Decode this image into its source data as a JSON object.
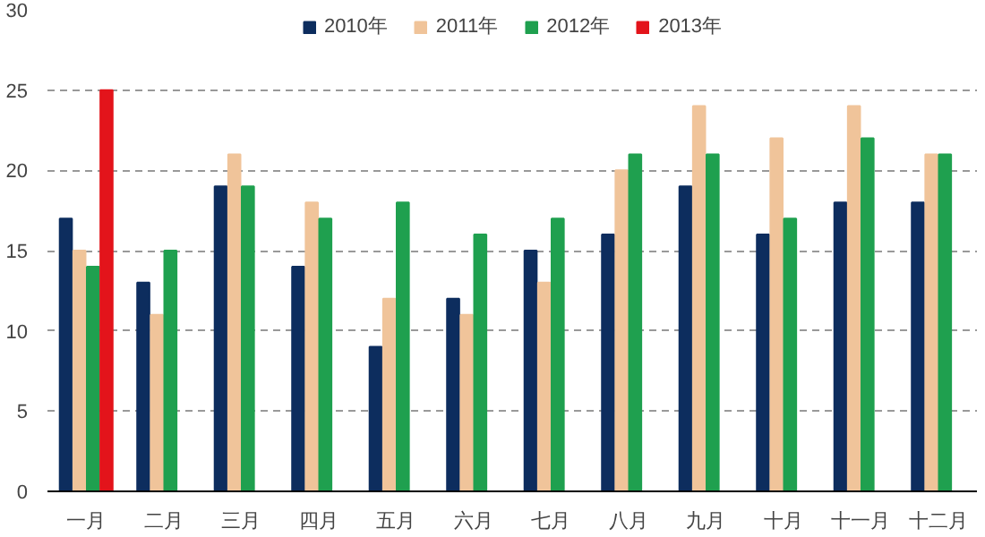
{
  "chart_data": {
    "type": "bar",
    "categories": [
      "一月",
      "二月",
      "三月",
      "四月",
      "五月",
      "六月",
      "七月",
      "八月",
      "九月",
      "十月",
      "十一月",
      "十二月"
    ],
    "series": [
      {
        "name": "2010年",
        "color": "#0d2d5e",
        "values": [
          17,
          13,
          19,
          14,
          9,
          12,
          15,
          16,
          19,
          16,
          18,
          18
        ]
      },
      {
        "name": "2011年",
        "color": "#f0c49a",
        "values": [
          15,
          11,
          21,
          18,
          12,
          11,
          13,
          20,
          24,
          22,
          24,
          21
        ]
      },
      {
        "name": "2012年",
        "color": "#1fa04f",
        "values": [
          14,
          15,
          19,
          17,
          18,
          16,
          17,
          21,
          21,
          17,
          22,
          21
        ]
      },
      {
        "name": "2013年",
        "color": "#e3141b",
        "values": [
          25,
          null,
          null,
          null,
          null,
          null,
          null,
          null,
          null,
          null,
          null,
          null
        ]
      }
    ],
    "ylim": [
      0,
      30
    ],
    "yticks": [
      0,
      5,
      10,
      15,
      20,
      25,
      30
    ],
    "grid": "y",
    "legend": "top"
  }
}
